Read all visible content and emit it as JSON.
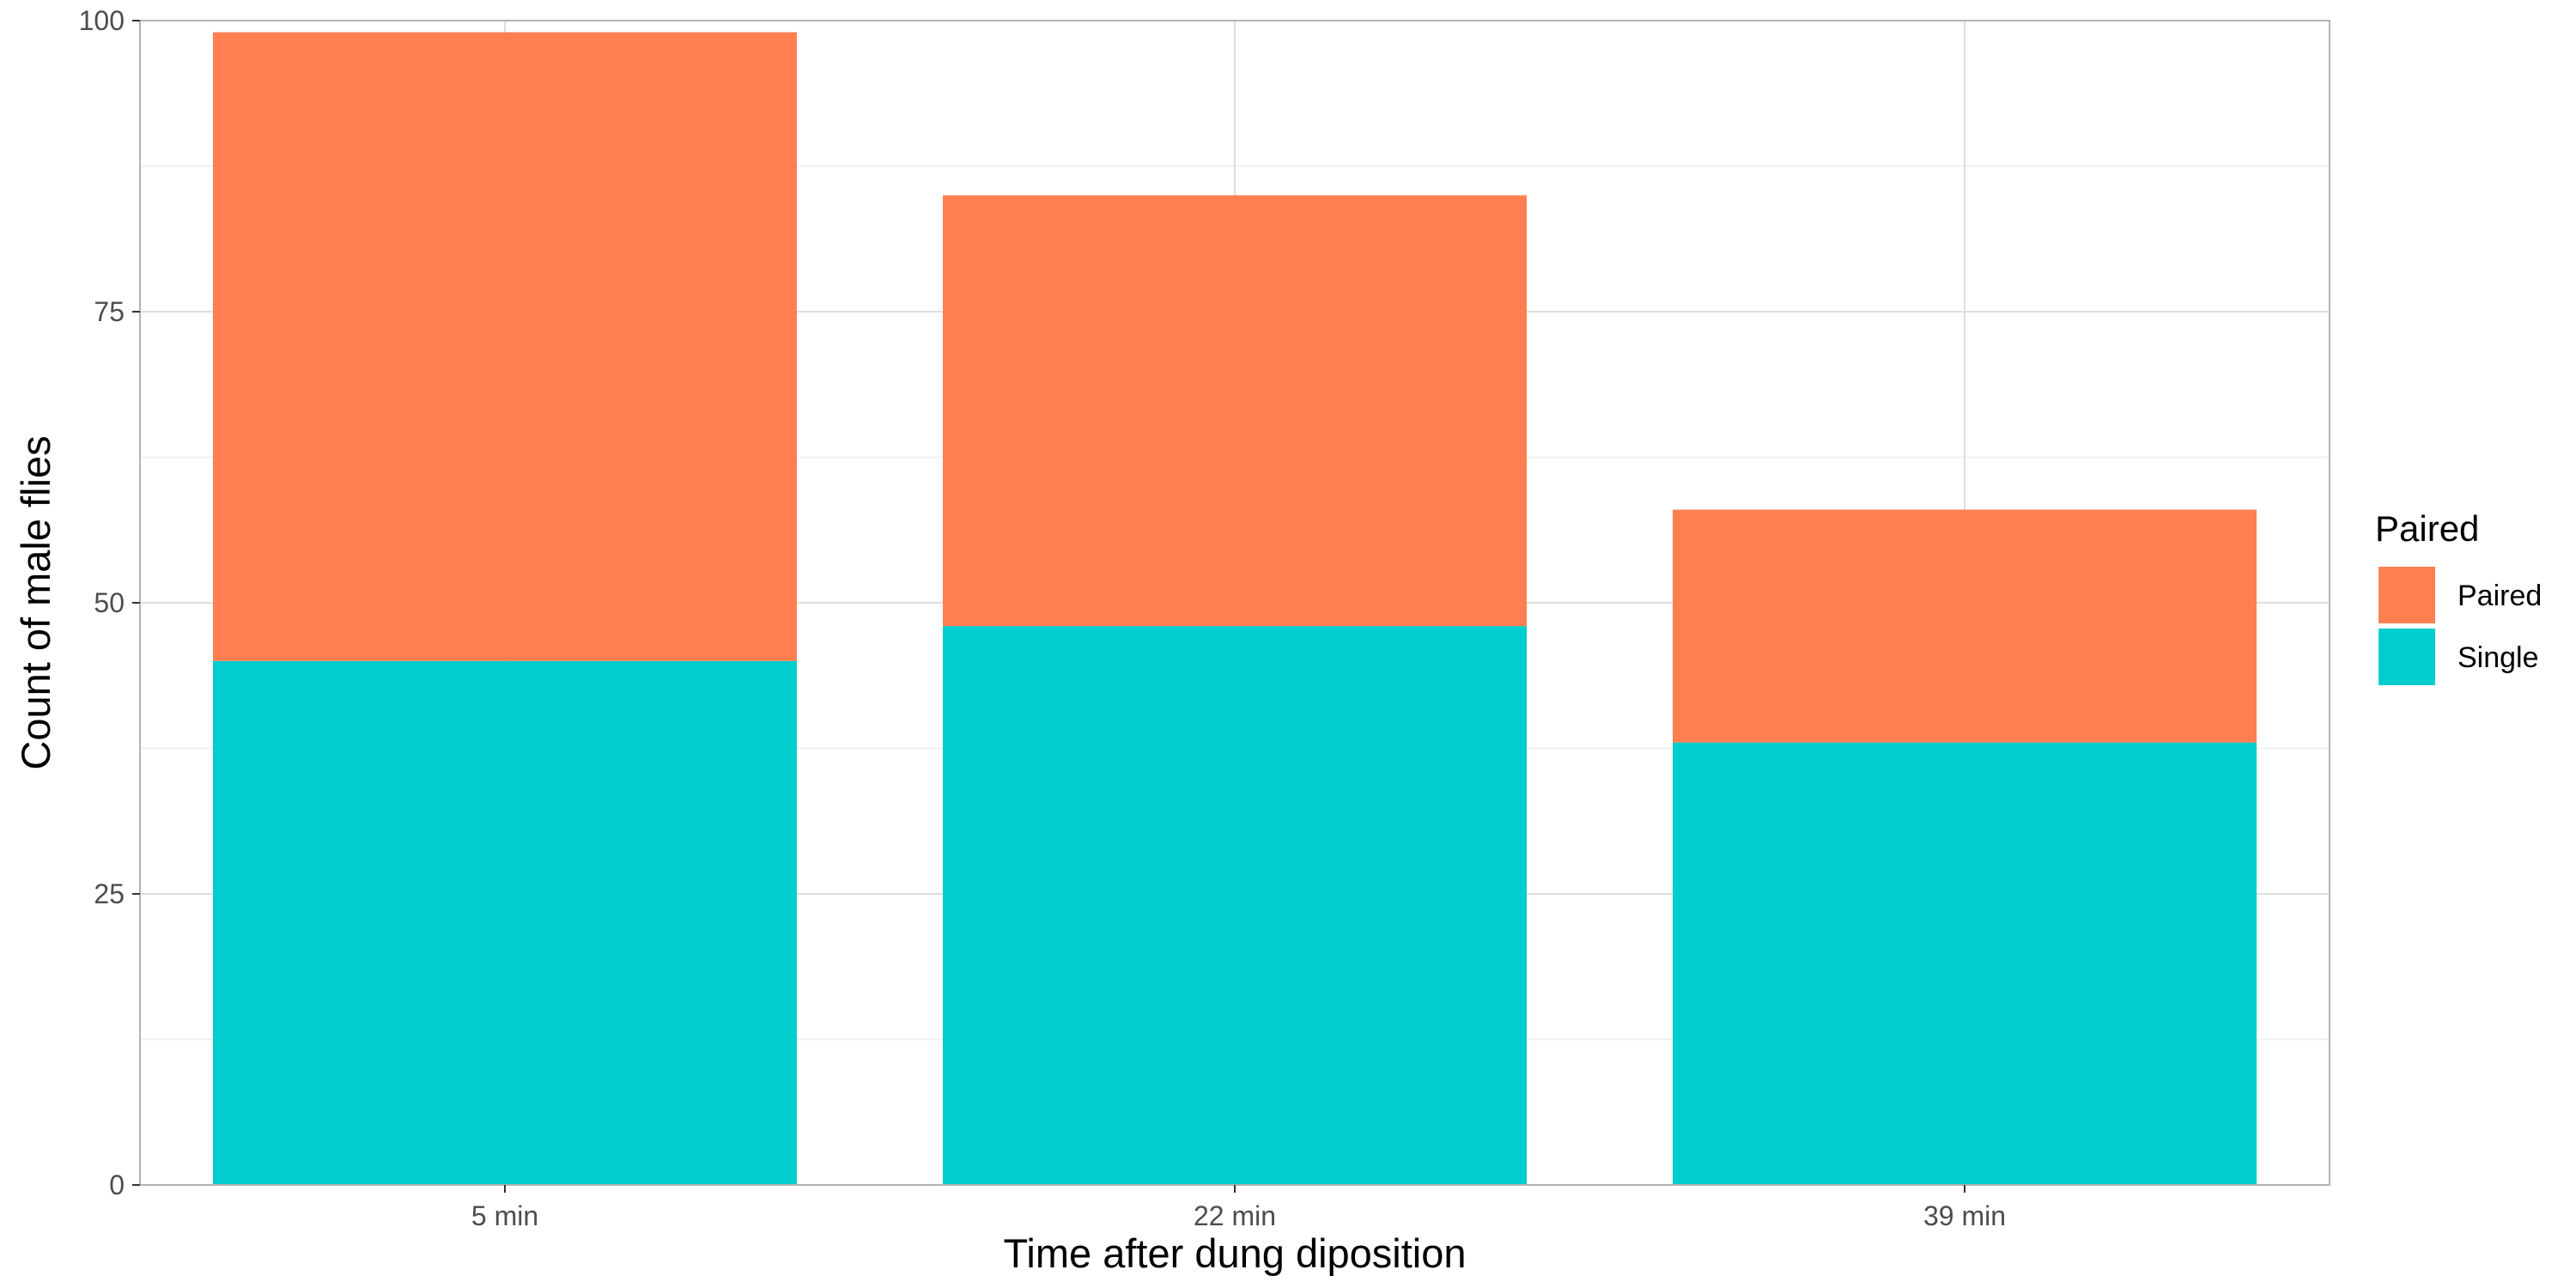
{
  "chart_data": {
    "type": "bar",
    "stacked": true,
    "categories": [
      "5 min",
      "22 min",
      "39 min"
    ],
    "series": [
      {
        "name": "Single",
        "values": [
          45,
          48,
          38
        ],
        "color": "#00CDCD"
      },
      {
        "name": "Paired",
        "values": [
          54,
          37,
          20
        ],
        "color": "#FF7F50"
      }
    ],
    "xlabel": "Time after dung diposition",
    "ylabel": "Count of male flies",
    "ylim": [
      0,
      100
    ],
    "yticks": [
      "0",
      "25",
      "50",
      "75",
      "100"
    ],
    "grid": true,
    "legend": {
      "title": "Paired",
      "position": "right",
      "entries": [
        "Paired",
        "Single"
      ]
    }
  }
}
